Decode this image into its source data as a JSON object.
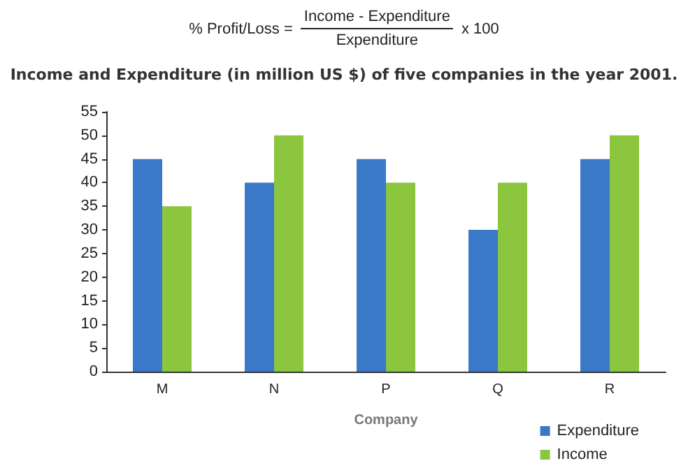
{
  "chart_data": {
    "type": "bar",
    "title": "Income and Expenditure (in million US $) of five companies in the year 2001.",
    "xlabel": "Company",
    "annotations": [
      "% Profit/Loss =",
      "Income - Expenditure",
      "Expenditure",
      "x 100"
    ],
    "categories": [
      "M",
      "N",
      "P",
      "Q",
      "R"
    ],
    "series": [
      {
        "name": "Expenditure",
        "color": "#3a78c8",
        "values": [
          45,
          40,
          45,
          30,
          45
        ]
      },
      {
        "name": "Income",
        "color": "#8cc63f",
        "values": [
          35,
          50,
          40,
          40,
          50
        ]
      }
    ],
    "ylim": [
      0,
      55
    ],
    "yticks": [
      0,
      5,
      10,
      15,
      20,
      25,
      30,
      35,
      40,
      45,
      50,
      55
    ],
    "grid": false,
    "legend": "bottom right"
  }
}
